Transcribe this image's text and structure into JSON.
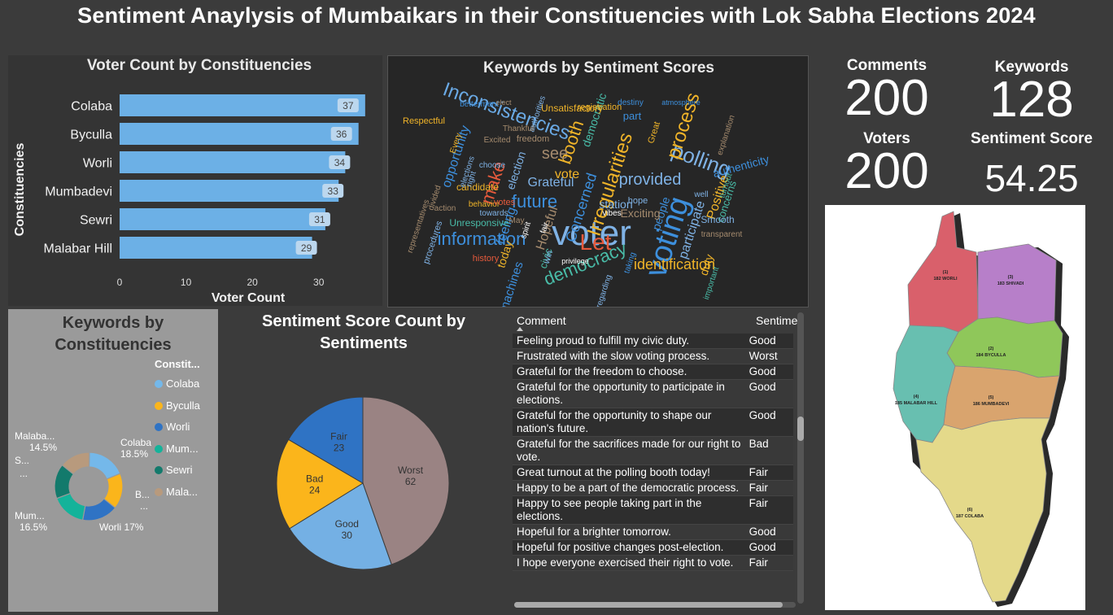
{
  "title": "Sentiment Anaylysis of Mumbaikars in their Constituencies with Lok Sabha Elections 2024",
  "colors": {
    "bar": "#6cb0e6",
    "colaba": "#74b8ea",
    "byculla": "#fbb51b",
    "worli": "#2f73c4",
    "mumbadevi": "#14b39a",
    "sewri": "#137a6c",
    "malabar": "#b89a7d"
  },
  "bar_chart": {
    "title": "Voter Count by Constituencies",
    "chart_data": {
      "type": "bar",
      "categories": [
        "Colaba",
        "Byculla",
        "Worli",
        "Mumbadevi",
        "Sewri",
        "Malabar Hill"
      ],
      "values": [
        37,
        36,
        34,
        33,
        31,
        29
      ],
      "xlabel": "Voter Count",
      "ylabel": "Constituencies",
      "xlim": [
        0,
        38
      ],
      "ticks": [
        "0",
        "10",
        "20",
        "30"
      ]
    }
  },
  "wordcloud": {
    "title": "Keywords by Sentiment Scores",
    "words": [
      {
        "t": "voter",
        "c": "#7fb2e5"
      },
      {
        "t": "voting",
        "c": "#3d8fdc"
      },
      {
        "t": "Inconsistencies",
        "c": "#6aa9e4"
      },
      {
        "t": "polling",
        "c": "#7fb2e5"
      },
      {
        "t": "process",
        "c": "#f0b429"
      },
      {
        "t": "democracy",
        "c": "#49bca8"
      },
      {
        "t": "Let",
        "c": "#e65a3c"
      },
      {
        "t": "information",
        "c": "#3d8fdc"
      },
      {
        "t": "Irregularities",
        "c": "#f0b429"
      },
      {
        "t": "Concerned",
        "c": "#3d8fdc"
      },
      {
        "t": "provided",
        "c": "#7fb2e5"
      },
      {
        "t": "booth",
        "c": "#f0b429"
      },
      {
        "t": "future",
        "c": "#3d8fdc"
      },
      {
        "t": "identification",
        "c": "#f0b429"
      },
      {
        "t": "make",
        "c": "#e65a3c"
      },
      {
        "t": "see",
        "c": "#a58b6e"
      },
      {
        "t": "Grateful",
        "c": "#7fb2e5"
      },
      {
        "t": "vote",
        "c": "#f0b429"
      },
      {
        "t": "authenticity",
        "c": "#3d8fdc"
      },
      {
        "t": "Positive",
        "c": "#f0b429"
      },
      {
        "t": "participate",
        "c": "#7fb2e5"
      },
      {
        "t": "opportunity",
        "c": "#3d8fdc"
      },
      {
        "t": "democratic",
        "c": "#49bca8"
      },
      {
        "t": "election",
        "c": "#7fb2e5"
      },
      {
        "t": "Unsatisfactory",
        "c": "#f0b429"
      },
      {
        "t": "Hopeful",
        "c": "#a58b6e"
      },
      {
        "t": "feeling",
        "c": "#3d8fdc"
      },
      {
        "t": "concerns",
        "c": "#49bca8"
      },
      {
        "t": "duty",
        "c": "#f0b429"
      },
      {
        "t": "station",
        "c": "#7fb2e5"
      },
      {
        "t": "people",
        "c": "#3d8fdc"
      },
      {
        "t": "Exciting",
        "c": "#a58b6e"
      },
      {
        "t": "machines",
        "c": "#3d8fdc"
      },
      {
        "t": "today",
        "c": "#f0b429"
      },
      {
        "t": "civic",
        "c": "#49bca8"
      },
      {
        "t": "history",
        "c": "#e65a3c"
      },
      {
        "t": "Respectful",
        "c": "#f0b429"
      },
      {
        "t": "explanation",
        "c": "#a58b6e"
      },
      {
        "t": "Smooth",
        "c": "#7fb2e5"
      },
      {
        "t": "transparent",
        "c": "#a58b6e"
      },
      {
        "t": "candidate",
        "c": "#f0b429"
      },
      {
        "t": "elections",
        "c": "#7fb2e5"
      },
      {
        "t": "freedom",
        "c": "#a58b6e"
      },
      {
        "t": "Excited",
        "c": "#a58b6e"
      },
      {
        "t": "registration",
        "c": "#f0b429"
      },
      {
        "t": "authorities",
        "c": "#7fb2e5"
      },
      {
        "t": "procedures",
        "c": "#7fb2e5"
      },
      {
        "t": "Unresponsive",
        "c": "#49bca8"
      },
      {
        "t": "privilege",
        "c": "#ffffff"
      },
      {
        "t": "regarding",
        "c": "#7fb2e5"
      },
      {
        "t": "vibes",
        "c": "#ffffff"
      },
      {
        "t": "hope",
        "c": "#7fb2e5"
      },
      {
        "t": "Great",
        "c": "#f0b429"
      },
      {
        "t": "part",
        "c": "#3d8fdc"
      },
      {
        "t": "turnout",
        "c": "#49bca8"
      },
      {
        "t": "action",
        "c": "#a58b6e"
      },
      {
        "t": "Thankful",
        "c": "#a58b6e"
      },
      {
        "t": "betterment",
        "c": "#3d8fdc"
      },
      {
        "t": "elect",
        "c": "#a58b6e"
      },
      {
        "t": "destiny",
        "c": "#3d8fdc"
      },
      {
        "t": "atmosphere",
        "c": "#3d8fdc"
      },
      {
        "t": "behavior",
        "c": "#f0b429"
      },
      {
        "t": "towards",
        "c": "#7fb2e5"
      },
      {
        "t": "votes",
        "c": "#e65a3c"
      },
      {
        "t": "May",
        "c": "#a58b6e"
      },
      {
        "t": "win",
        "c": "#7fb2e5"
      },
      {
        "t": "taking",
        "c": "#3d8fdc"
      },
      {
        "t": "important",
        "c": "#49bca8"
      },
      {
        "t": "well",
        "c": "#7fb2e5"
      },
      {
        "t": "spirit",
        "c": "#ffffff"
      },
      {
        "t": "fair",
        "c": "#ffffff"
      },
      {
        "t": "Every",
        "c": "#f0b429"
      },
      {
        "t": "choose",
        "c": "#7fb2e5"
      },
      {
        "t": "right",
        "c": "#7fb2e5"
      },
      {
        "t": "divided",
        "c": "#a58b6e"
      },
      {
        "t": "representatives",
        "c": "#a58b6e"
      }
    ]
  },
  "kpis": [
    {
      "label": "Comments",
      "value": "200"
    },
    {
      "label": "Keywords",
      "value": "128"
    },
    {
      "label": "Voters",
      "value": "200"
    },
    {
      "label": "Sentiment Score",
      "value": "54.25"
    }
  ],
  "map": {
    "regions": [
      {
        "num": "(1)",
        "name": "182 WORLI",
        "color": "#d9606b"
      },
      {
        "num": "(3)",
        "name": "183 SHIVADI",
        "color": "#b77fc9"
      },
      {
        "num": "(2)",
        "name": "184 BYCULLA",
        "color": "#8fc75a"
      },
      {
        "num": "(4)",
        "name": "185 MALABAR HILL",
        "color": "#68bfb0"
      },
      {
        "num": "(5)",
        "name": "186 MUMBADEVI",
        "color": "#d9a46e"
      },
      {
        "num": "(6)",
        "name": "187 COLABA",
        "color": "#e4d98a"
      }
    ]
  },
  "donut": {
    "title_line1": "Keywords by",
    "title_line2": "Constituencies",
    "legend_title": "Constit...",
    "legend": [
      "Colaba",
      "Byculla",
      "Worli",
      "Mum...",
      "Sewri",
      "Mala..."
    ],
    "chart_data": {
      "type": "pie",
      "categories": [
        "Colaba",
        "Byculla",
        "Worli",
        "Mumbadevi",
        "Sewri",
        "Malabar Hill"
      ],
      "values": [
        18.5,
        17,
        17,
        16.5,
        16.5,
        14.5
      ]
    },
    "labels": [
      {
        "name": "Colaba",
        "pct": "18.5%"
      },
      {
        "name": "B...",
        "pct": "..."
      },
      {
        "name": "Worli",
        "pct": "17%"
      },
      {
        "name": "Mum...",
        "pct": "16.5%"
      },
      {
        "name": "S...",
        "pct": "..."
      },
      {
        "name": "Malaba...",
        "pct": "14.5%"
      }
    ]
  },
  "pie": {
    "title_line1": "Sentiment Score Count by",
    "title_line2": "Sentiments",
    "chart_data": {
      "type": "pie",
      "categories": [
        "Worst",
        "Good",
        "Bad",
        "Fair"
      ],
      "values": [
        62,
        30,
        24,
        23
      ]
    },
    "colors": [
      "#9a8383",
      "#74b0e4",
      "#fbb51b",
      "#2f73c4"
    ]
  },
  "table": {
    "headers": [
      "Comment",
      "Sentime"
    ],
    "rows": [
      [
        "Feeling proud to fulfill my civic duty.",
        "Good"
      ],
      [
        "Frustrated with the slow voting process.",
        "Worst"
      ],
      [
        "Grateful for the freedom to choose.",
        "Good"
      ],
      [
        "Grateful for the opportunity to participate in elections.",
        "Good"
      ],
      [
        "Grateful for the opportunity to shape our nation's future.",
        "Good"
      ],
      [
        "Grateful for the sacrifices made for our right to vote.",
        "Bad"
      ],
      [
        "Great turnout at the polling booth today!",
        "Fair"
      ],
      [
        "Happy to be a part of the democratic process.",
        "Fair"
      ],
      [
        "Happy to see people taking part in the elections.",
        "Fair"
      ],
      [
        "Hopeful for a brighter tomorrow.",
        "Good"
      ],
      [
        "Hopeful for positive changes post-election.",
        "Good"
      ],
      [
        "I hope everyone exercised their right to vote.",
        "Fair"
      ]
    ]
  }
}
